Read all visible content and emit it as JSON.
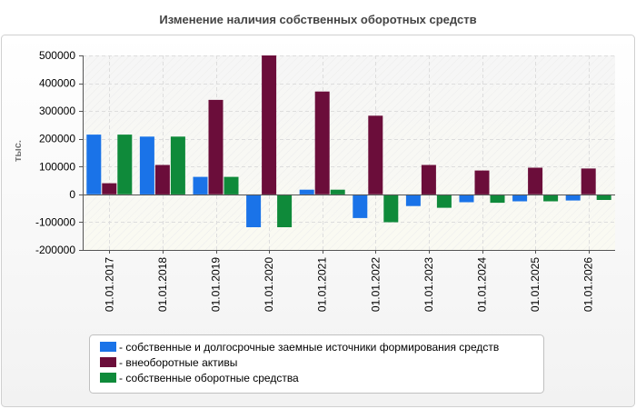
{
  "chart_data": {
    "type": "bar",
    "title": "Изменение наличия собственных оборотных средств",
    "ylabel": "тыс.",
    "xlabel": "",
    "ylim": [
      -200000,
      500000
    ],
    "yticks": [
      500000,
      400000,
      300000,
      200000,
      100000,
      0,
      -100000,
      -200000
    ],
    "grid": true,
    "legend_position": "bottom",
    "categories": [
      "01.01.2017",
      "01.01.2018",
      "01.01.2019",
      "01.01.2020",
      "01.01.2021",
      "01.01.2022",
      "01.01.2023",
      "01.01.2024",
      "01.01.2025",
      "01.01.2026"
    ],
    "series": [
      {
        "name": "- собственные и долгосрочные заемные источники формирования средств",
        "color": "#1a73e8",
        "values": [
          215000,
          208000,
          63000,
          -118000,
          17000,
          -85000,
          -42000,
          -28000,
          -25000,
          -22000
        ]
      },
      {
        "name": "- внеоборотные активы",
        "color": "#6b0d3a",
        "values": [
          40000,
          106000,
          340000,
          500000,
          370000,
          283000,
          106000,
          86000,
          96000,
          93000
        ]
      },
      {
        "name": "- собственные оборотные средства",
        "color": "#0f8a3a",
        "values": [
          215000,
          208000,
          63000,
          -118000,
          17000,
          -100000,
          -48000,
          -30000,
          -25000,
          -20000
        ]
      }
    ]
  }
}
